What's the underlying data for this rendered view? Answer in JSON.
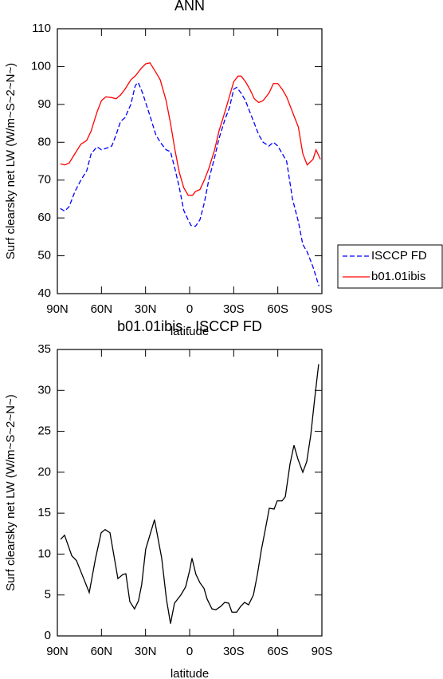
{
  "chart_data": [
    {
      "type": "line",
      "title": "ANN",
      "xlabel": "latitude",
      "ylabel": "Surf clearsky net LW (W/m~S~2~N~)",
      "xlim": [
        90,
        -90
      ],
      "xticks": [
        {
          "value": 90,
          "label": "90N"
        },
        {
          "value": 60,
          "label": "60N"
        },
        {
          "value": 30,
          "label": "30N"
        },
        0,
        {
          "value": -30,
          "label": "30S"
        },
        {
          "value": -60,
          "label": "60S"
        },
        {
          "value": -90,
          "label": "90S"
        }
      ],
      "ylim": [
        40,
        110
      ],
      "yticks": [
        40,
        50,
        60,
        70,
        80,
        90,
        100,
        110
      ],
      "legend": "outside right",
      "series": [
        {
          "name": "ISCCP FD",
          "color": "#0000ff",
          "dash": "dashed",
          "x": [
            88,
            85,
            82,
            78,
            74,
            70,
            67,
            63,
            60,
            56,
            53,
            50,
            47,
            44,
            40,
            37,
            35,
            32,
            27,
            23,
            20,
            16,
            13,
            10,
            7,
            4,
            1,
            -1,
            -4,
            -7,
            -10,
            -13,
            -17,
            -20,
            -24,
            -27,
            -30,
            -32,
            -35,
            -38,
            -41,
            -44,
            -47,
            -50,
            -54,
            -57,
            -60,
            -63,
            -66,
            -70,
            -74,
            -77,
            -80,
            -84,
            -88
          ],
          "values": [
            62.5,
            61.8,
            63,
            67,
            70,
            72.5,
            77,
            78.8,
            78,
            78.5,
            79,
            82,
            85.5,
            86.5,
            90,
            95,
            95.8,
            93,
            87,
            82,
            80,
            78,
            77.5,
            73,
            68,
            62,
            59.5,
            58,
            57.8,
            59.5,
            64,
            70,
            76,
            81,
            86,
            89,
            94,
            94.5,
            93,
            91,
            88,
            85,
            82,
            80,
            79,
            80,
            79,
            77,
            75,
            65,
            59,
            53,
            51,
            47,
            42
          ]
        },
        {
          "name": "b01.01ibis",
          "color": "#ff0000",
          "dash": "solid",
          "x": [
            88,
            85,
            82,
            78,
            74,
            70,
            67,
            63,
            60,
            57,
            53,
            50,
            47,
            44,
            40,
            37,
            33,
            30,
            27,
            23,
            20,
            16,
            13,
            10,
            7,
            4,
            1,
            -2,
            -4,
            -7,
            -10,
            -13,
            -17,
            -20,
            -24,
            -27,
            -30,
            -33,
            -35,
            -38,
            -41,
            -44,
            -47,
            -50,
            -54,
            -57,
            -60,
            -63,
            -66,
            -70,
            -74,
            -77,
            -80,
            -84,
            -86,
            -89
          ],
          "values": [
            74.3,
            74,
            74.5,
            77,
            79.5,
            80.5,
            83,
            88,
            91,
            92,
            91.8,
            91.5,
            92.5,
            94,
            96.5,
            97.5,
            99.5,
            100.7,
            101,
            98.5,
            96.5,
            91,
            85,
            78,
            72,
            68,
            66,
            66,
            67,
            67.5,
            70,
            73,
            78,
            83,
            88,
            92,
            96,
            97.5,
            97.5,
            96,
            94,
            91.5,
            90.5,
            91,
            93,
            95.5,
            95.5,
            94,
            92,
            88,
            84,
            77,
            74,
            75.5,
            78,
            75.5
          ]
        }
      ]
    },
    {
      "type": "line",
      "title": "b01.01ibis - ISCCP FD",
      "xlabel": "latitude",
      "ylabel": "Surf clearsky net LW (W/m~S~2~N~)",
      "xlim": [
        90,
        -90
      ],
      "xticks": [
        {
          "value": 90,
          "label": "90N"
        },
        {
          "value": 60,
          "label": "60N"
        },
        {
          "value": 30,
          "label": "30N"
        },
        0,
        {
          "value": -30,
          "label": "30S"
        },
        {
          "value": -60,
          "label": "60S"
        },
        {
          "value": -90,
          "label": "90S"
        }
      ],
      "ylim": [
        0,
        35
      ],
      "yticks": [
        0,
        5,
        10,
        15,
        20,
        25,
        30,
        35
      ],
      "series": [
        {
          "color": "#000000",
          "dash": "solid",
          "x": [
            87.8,
            85.1,
            80.2,
            77,
            73.2,
            68.3,
            64,
            60.2,
            57.5,
            54.2,
            48.8,
            45.5,
            43.4,
            40.7,
            37.5,
            34.8,
            32.6,
            29.9,
            23.9,
            19,
            15.8,
            13,
            10.3,
            6,
            2.7,
            0,
            -1.6,
            -4.3,
            -7,
            -9.8,
            -11.9,
            -15.2,
            -17.9,
            -21.1,
            -23.9,
            -26.6,
            -28.8,
            -32,
            -34.7,
            -37.4,
            -40.1,
            -43.4,
            -46.1,
            -48.8,
            -51.5,
            -54.2,
            -57.5,
            -59.6,
            -62.9,
            -65.1,
            -68.3,
            -71,
            -73.7,
            -77,
            -79.7,
            -82.4,
            -85.1,
            -87.8
          ],
          "values": [
            11.8,
            12.3,
            9.8,
            9.2,
            7.5,
            5.3,
            9.5,
            12.6,
            13,
            12.6,
            7,
            7.5,
            7.6,
            4.2,
            3.3,
            4.3,
            6.3,
            10.6,
            14.2,
            9.5,
            4.5,
            1.5,
            4,
            5,
            6,
            8,
            9.5,
            7.5,
            6.5,
            5.8,
            4.5,
            3.3,
            3.2,
            3.6,
            4.1,
            4,
            2.9,
            2.9,
            3.6,
            4.1,
            3.8,
            5,
            7.5,
            10.5,
            13,
            15.6,
            15.5,
            16.5,
            16.5,
            17,
            21,
            23.3,
            21.6,
            20,
            21.3,
            24.5,
            29,
            33.2
          ]
        }
      ]
    }
  ]
}
